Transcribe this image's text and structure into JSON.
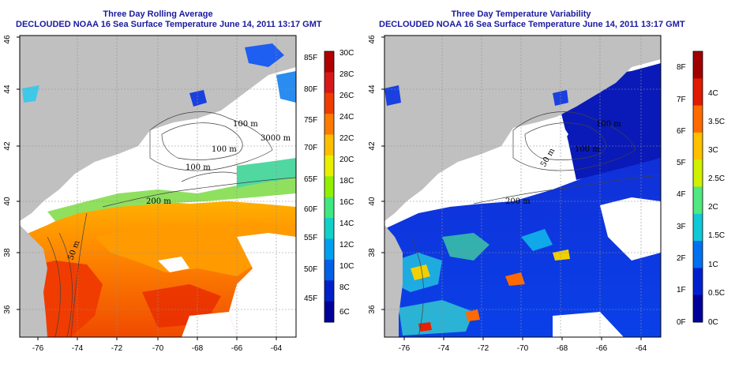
{
  "panels": [
    {
      "title": "Three Day Rolling Average",
      "subtitle": "DECLOUDED NOAA 16 Sea Surface Temperature June 14, 2011 13:17 GMT",
      "x_ticks": [
        "-76",
        "-74",
        "-72",
        "-70",
        "-68",
        "-66",
        "-64"
      ],
      "y_ticks": [
        "36",
        "38",
        "40",
        "42",
        "44",
        "46"
      ],
      "contour_labels": [
        "100 m",
        "100 m",
        "3000 m",
        "200 m",
        "50 m",
        "100 m"
      ],
      "colorbar": {
        "left_labels": [
          "85F",
          "80F",
          "75F",
          "70F",
          "65F",
          "60F",
          "55F",
          "50F",
          "45F"
        ],
        "right_labels": [
          "30C",
          "28C",
          "26C",
          "24C",
          "22C",
          "20C",
          "18C",
          "16C",
          "14C",
          "12C",
          "10C",
          "8C",
          "6C"
        ],
        "colors": [
          "#b00000",
          "#d81818",
          "#f03c00",
          "#ff7a00",
          "#ffbf00",
          "#e8f000",
          "#90f000",
          "#40e880",
          "#10d0c8",
          "#00a0f0",
          "#0060e8",
          "#0020c8",
          "#00009a"
        ]
      }
    },
    {
      "title": "Three Day Temperature Variability",
      "subtitle": "DECLOUDED NOAA 16 Sea Surface Temperature June 14, 2011 13:17 GMT",
      "x_ticks": [
        "-76",
        "-74",
        "-72",
        "-70",
        "-68",
        "-66",
        "-64"
      ],
      "y_ticks": [
        "36",
        "38",
        "40",
        "42",
        "44",
        "46"
      ],
      "contour_labels": [
        "100 m",
        "100 m",
        "50 m",
        "200 m"
      ],
      "colorbar": {
        "left_labels": [
          "8F",
          "7F",
          "6F",
          "5F",
          "4F",
          "3F",
          "2F",
          "1F",
          "0F"
        ],
        "right_labels": [
          "4C",
          "3.5C",
          "3C",
          "2.5C",
          "2C",
          "1.5C",
          "1C",
          "0.5C",
          "0C"
        ],
        "colors": [
          "#a00000",
          "#e01a00",
          "#ff6a00",
          "#ffc000",
          "#d0f000",
          "#50e880",
          "#10c8d8",
          "#0070f0",
          "#0020d0",
          "#00009a"
        ]
      }
    }
  ],
  "colors": {
    "land": "#c0c0c0",
    "title": "#1a1aa0"
  }
}
